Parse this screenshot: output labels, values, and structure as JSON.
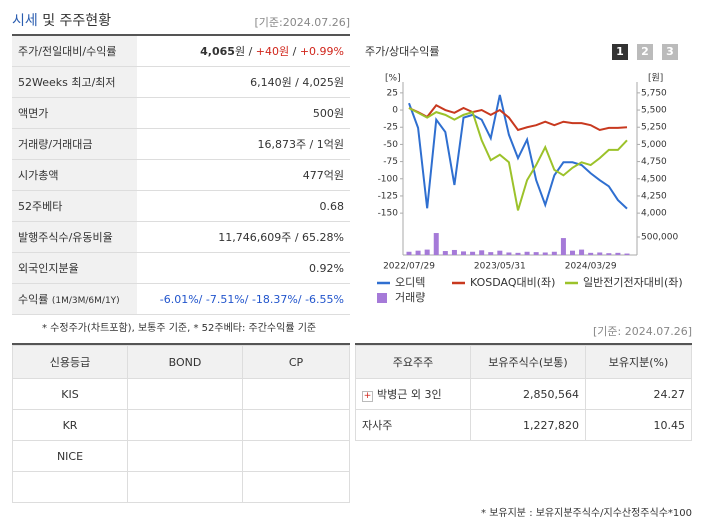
{
  "header": {
    "title_highlight": "시세",
    "title_rest": "및 주주현황",
    "date": "[기준:2024.07.26]"
  },
  "stats": {
    "price_row": {
      "label": "주가/전일대비/수익률",
      "parts": [
        "4,065",
        "원 / ",
        "+40원",
        " / ",
        "+0.99%"
      ]
    },
    "rows": [
      {
        "label": "52Weeks 최고/최저",
        "value": "6,140원 / 4,025원"
      },
      {
        "label": "액면가",
        "value": "500원"
      },
      {
        "label": "거래량/거래대금",
        "value": "16,873주 / 1억원"
      },
      {
        "label": "시가총액",
        "value": "477억원"
      },
      {
        "label": "52주베타",
        "value": "0.68"
      },
      {
        "label": "발행주식수/유동비율",
        "value": "11,746,609주 / 65.28%"
      },
      {
        "label": "외국인지분율",
        "value": "0.92%"
      }
    ],
    "return_row": {
      "label": "수익률",
      "label_sub": "(1M/3M/6M/1Y)",
      "value": "-6.01%/ -7.51%/ -18.37%/ -6.55%"
    },
    "note": "* 수정주가(차트포함), 보통주 기준, * 52주베타: 주간수익률 기준"
  },
  "chart_buttons": [
    "1",
    "2",
    "3"
  ],
  "chart_data": {
    "type": "line",
    "title": "주가/상대수익률",
    "y_unit": "[%]",
    "y2_unit": "[원]",
    "categories": [
      "2022/07/29",
      null,
      null,
      null,
      null,
      null,
      null,
      null,
      null,
      null,
      "2023/05/31",
      null,
      null,
      null,
      null,
      null,
      null,
      null,
      null,
      null,
      "2024/03/29",
      null,
      null,
      null,
      null
    ],
    "ylim": [
      -160,
      35
    ],
    "yticks": [
      25,
      0,
      -25,
      -50,
      -75,
      -100,
      -125,
      -150
    ],
    "y2lim": [
      3900,
      5850
    ],
    "y2ticks": [
      {
        "value": 5750,
        "label": "5,750"
      },
      {
        "value": 5500,
        "label": "5,500"
      },
      {
        "value": 5250,
        "label": "5,250"
      },
      {
        "value": 5000,
        "label": "5,000"
      },
      {
        "value": 4750,
        "label": "4,750"
      },
      {
        "value": 4500,
        "label": "4,500"
      },
      {
        "value": 4250,
        "label": "4,250"
      },
      {
        "value": 4000,
        "label": "4,000"
      }
    ],
    "y3lim": [
      0,
      500000
    ],
    "y3ticks": [
      {
        "value": 500000,
        "label": "500,000"
      }
    ],
    "grid": false,
    "series": [
      {
        "name": "오디텍",
        "color": "#2f6fd0",
        "axis": "y2",
        "values": [
          5600,
          5240,
          4070,
          5360,
          5180,
          4410,
          5390,
          5430,
          5360,
          5090,
          5720,
          5140,
          4800,
          5070,
          4480,
          4120,
          4550,
          4740,
          4740,
          4700,
          4580,
          4480,
          4390,
          4190,
          4065
        ]
      },
      {
        "name": "KOSDAQ대비(좌)",
        "color": "#c8391f",
        "values": [
          3,
          -3,
          -10,
          7,
          0,
          -4,
          3,
          -3,
          0,
          -7,
          0,
          -11,
          -29,
          -25,
          -22,
          -17,
          -22,
          -17,
          -19,
          -19,
          -22,
          -29,
          -26,
          -26,
          -25
        ]
      },
      {
        "name": "일반전기전자대비(좌)",
        "color": "#9cc22a",
        "values": [
          3,
          -4,
          -11,
          -3,
          -7,
          -14,
          -7,
          -3,
          -44,
          -73,
          -65,
          -76,
          -146,
          -102,
          -80,
          -54,
          -87,
          -95,
          -84,
          -76,
          -80,
          -70,
          -58,
          -58,
          -44
        ]
      },
      {
        "name": "거래량",
        "color": "#a57ad8",
        "type": "bar",
        "axis": "y3",
        "values": [
          90000,
          120000,
          150000,
          610000,
          110000,
          140000,
          100000,
          90000,
          130000,
          80000,
          120000,
          70000,
          60000,
          90000,
          80000,
          70000,
          90000,
          470000,
          120000,
          150000,
          60000,
          70000,
          50000,
          60000,
          40000
        ]
      }
    ]
  },
  "credit": {
    "date": "[기준: 2024.07.26]",
    "header": [
      "신용등급",
      "BOND",
      "CP"
    ],
    "rows": [
      [
        "KIS",
        "",
        ""
      ],
      [
        "KR",
        "",
        ""
      ],
      [
        "NICE",
        "",
        ""
      ]
    ]
  },
  "holders": {
    "header": [
      "주요주주",
      "보유주식수(보통)",
      "보유지분(%)"
    ],
    "rows": [
      [
        "박병근 외 3인",
        "2,850,564",
        "24.27"
      ],
      [
        "자사주",
        "1,227,820",
        "10.45"
      ]
    ],
    "note": "* 보유지분 : 보유지분주식수/지수산정주식수*100"
  }
}
